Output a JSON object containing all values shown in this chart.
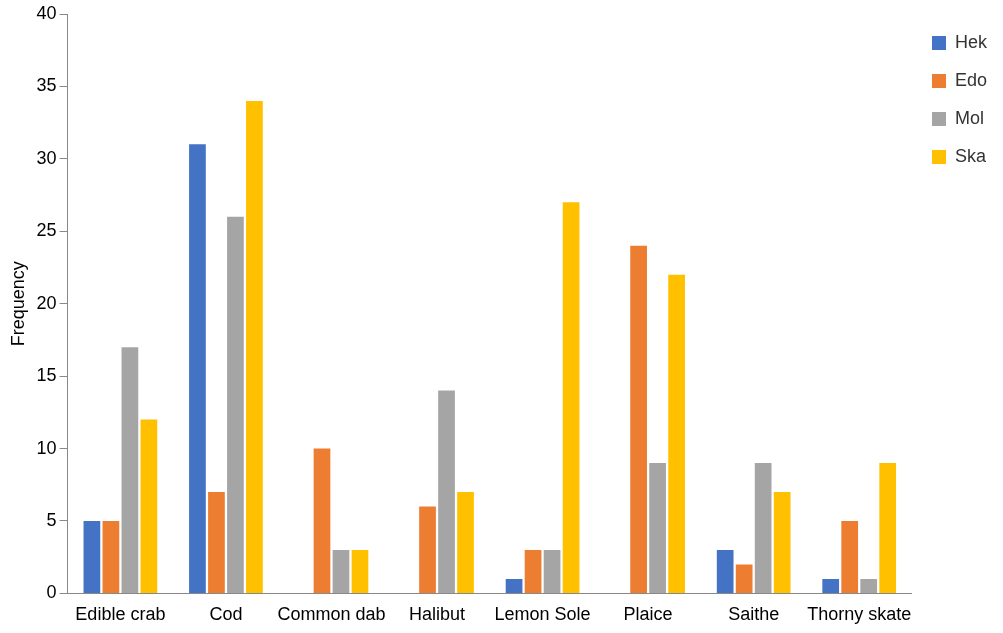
{
  "chart_data": {
    "type": "bar",
    "ylabel": "Frequency",
    "categories": [
      "Edible crab",
      "Cod",
      "Common dab",
      "Halibut",
      "Lemon Sole",
      "Plaice",
      "Saithe",
      "Thorny skate"
    ],
    "series": [
      {
        "name": "Hek",
        "color": "#4472c4",
        "values": [
          5,
          31,
          0,
          0,
          1,
          0,
          3,
          1
        ]
      },
      {
        "name": "Edo",
        "color": "#ed7d31",
        "values": [
          5,
          7,
          10,
          6,
          3,
          24,
          2,
          5
        ]
      },
      {
        "name": "Mol",
        "color": "#a5a5a5",
        "values": [
          17,
          26,
          3,
          14,
          3,
          9,
          9,
          1
        ]
      },
      {
        "name": "Ska",
        "color": "#ffc000",
        "values": [
          12,
          34,
          3,
          7,
          27,
          22,
          7,
          9
        ]
      }
    ],
    "ylim": [
      0,
      40
    ],
    "yticks": [
      0,
      5,
      10,
      15,
      20,
      25,
      30,
      35,
      40
    ],
    "grid": false,
    "legend": "right"
  }
}
